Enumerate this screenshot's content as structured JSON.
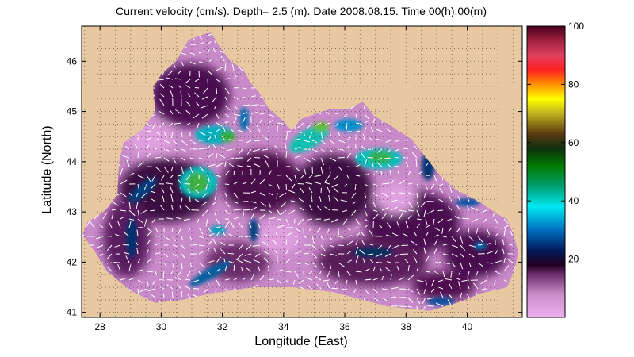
{
  "title": "Current velocity (cm/s). Depth=  2.5 (m). Date 2008.08.15. Time 00(h):00(m)",
  "xlabel": "Longitude (East)",
  "ylabel": "Latitude (North)",
  "x_ticks": [
    28,
    30,
    32,
    34,
    36,
    38,
    40
  ],
  "y_ticks": [
    41,
    42,
    43,
    44,
    45,
    46
  ],
  "xlim": [
    27.4,
    41.8
  ],
  "ylim": [
    40.9,
    46.7
  ],
  "colorbar": {
    "ticks": [
      20,
      40,
      60,
      80,
      100
    ],
    "range": [
      0,
      100
    ],
    "colors": [
      "#f0b0f0",
      "#d090d0",
      "#805080",
      "#300030",
      "#002060",
      "#0080c0",
      "#00f0f0",
      "#00a060",
      "#008000",
      "#40c040",
      "#c0a040",
      "#ffff00",
      "#ff8000",
      "#ff2020",
      "#e04050",
      "#d04060",
      "#c03050",
      "#800020",
      "#500020"
    ]
  },
  "colors": {
    "land": "#e8c8a0",
    "water_low": "#e6a8e6",
    "water_mid": "#501850"
  },
  "chart_data": {
    "type": "heatmap",
    "quantity": "Current velocity (cm/s)",
    "depth_m": 2.5,
    "date": "2008.08.15",
    "time": "00(h):00(m)",
    "xlabel": "Longitude (East)",
    "ylabel": "Latitude (North)",
    "xlim": [
      27.4,
      41.8
    ],
    "ylim": [
      40.9,
      46.7
    ],
    "grid": true,
    "hotspots": [
      {
        "lon": 32.0,
        "lat": 44.5,
        "value": 40
      },
      {
        "lon": 31.3,
        "lat": 43.6,
        "value": 45
      },
      {
        "lon": 30.8,
        "lat": 43.8,
        "value": 40
      },
      {
        "lon": 34.8,
        "lat": 44.3,
        "value": 40
      },
      {
        "lon": 35.3,
        "lat": 44.7,
        "value": 50
      },
      {
        "lon": 37.1,
        "lat": 44.1,
        "value": 45
      },
      {
        "lon": 36.2,
        "lat": 44.6,
        "value": 30
      },
      {
        "lon": 29.6,
        "lat": 43.2,
        "value": 25
      },
      {
        "lon": 29.1,
        "lat": 42.3,
        "value": 20
      },
      {
        "lon": 31.2,
        "lat": 41.6,
        "value": 25
      },
      {
        "lon": 37.0,
        "lat": 42.6,
        "value": 20
      },
      {
        "lon": 39.6,
        "lat": 41.2,
        "value": 20
      }
    ]
  }
}
